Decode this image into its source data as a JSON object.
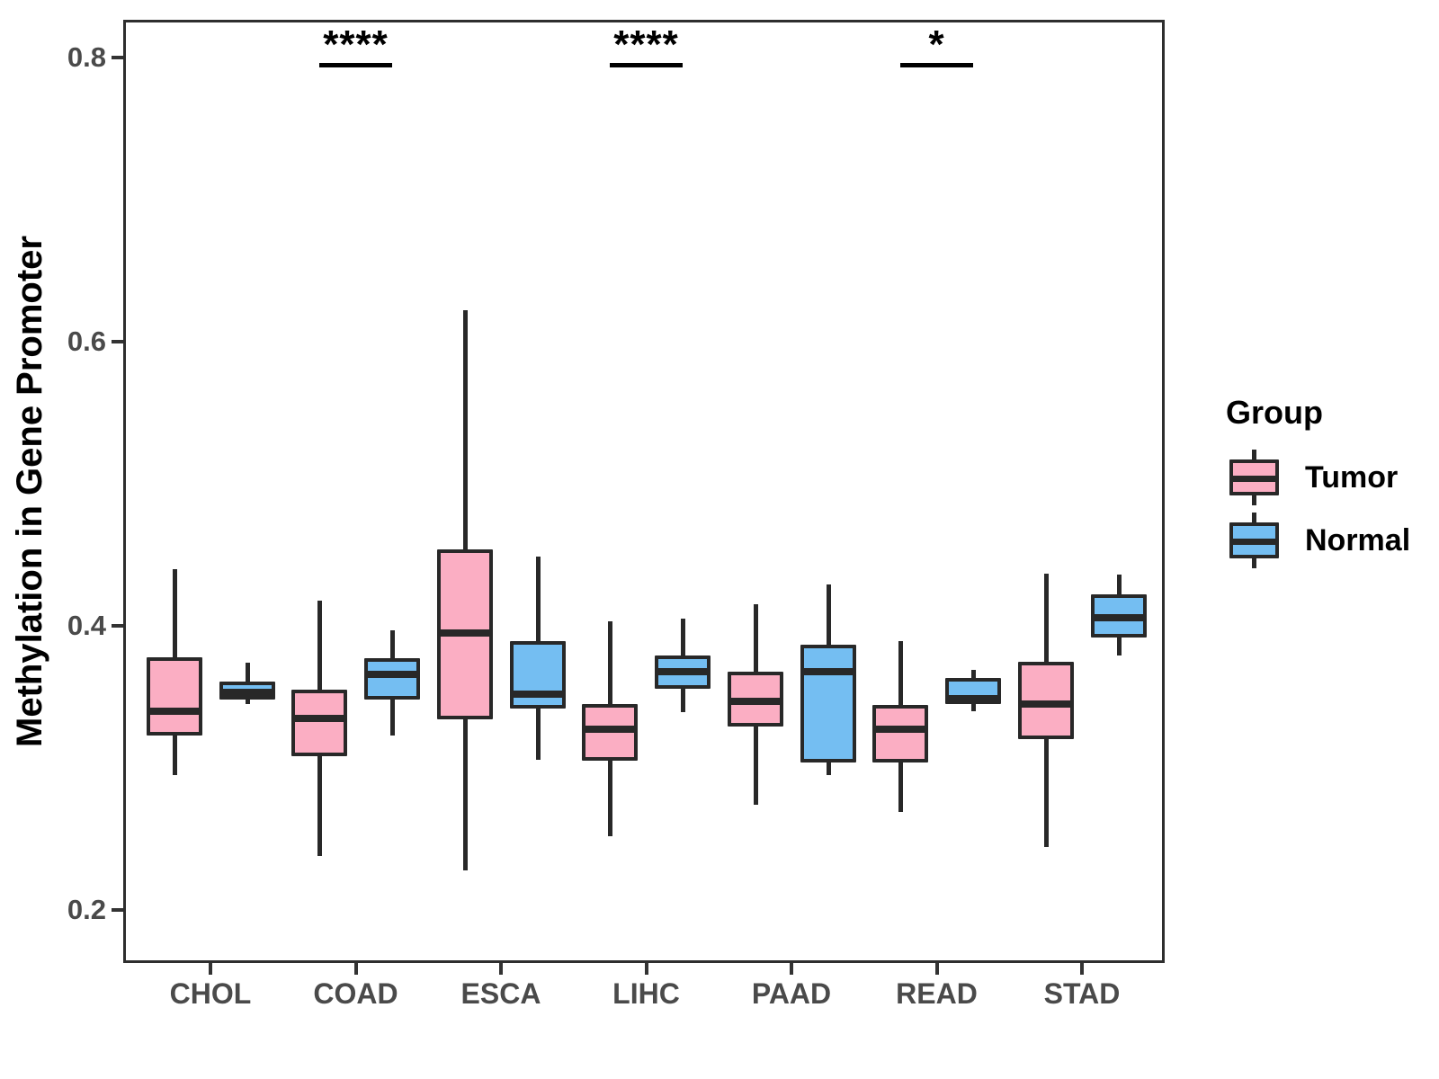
{
  "chart_data": {
    "type": "boxplot",
    "title": "",
    "xlabel": "",
    "ylabel": "Methylation in Gene Promoter",
    "categories": [
      "CHOL",
      "COAD",
      "ESCA",
      "LIHC",
      "PAAD",
      "READ",
      "STAD"
    ],
    "y_ticks": [
      {
        "value": 0.2,
        "label": "0.2"
      },
      {
        "value": 0.4,
        "label": "0.4"
      },
      {
        "value": 0.6,
        "label": "0.6"
      },
      {
        "value": 0.8,
        "label": "0.8"
      }
    ],
    "ylim": [
      0.163,
      0.827
    ],
    "grid": false,
    "legend_position": "right",
    "series": [
      {
        "name": "Tumor",
        "color": "#FBAEC3",
        "boxes": [
          {
            "category": "CHOL",
            "min": 0.295,
            "q1": 0.323,
            "med": 0.34,
            "q3": 0.378,
            "max": 0.44
          },
          {
            "category": "COAD",
            "min": 0.238,
            "q1": 0.308,
            "med": 0.335,
            "q3": 0.355,
            "max": 0.418
          },
          {
            "category": "ESCA",
            "min": 0.228,
            "q1": 0.334,
            "med": 0.395,
            "q3": 0.454,
            "max": 0.622
          },
          {
            "category": "LIHC",
            "min": 0.252,
            "q1": 0.305,
            "med": 0.327,
            "q3": 0.345,
            "max": 0.403
          },
          {
            "category": "PAAD",
            "min": 0.274,
            "q1": 0.329,
            "med": 0.347,
            "q3": 0.368,
            "max": 0.415
          },
          {
            "category": "READ",
            "min": 0.269,
            "q1": 0.304,
            "med": 0.327,
            "q3": 0.344,
            "max": 0.389
          },
          {
            "category": "STAD",
            "min": 0.244,
            "q1": 0.32,
            "med": 0.345,
            "q3": 0.375,
            "max": 0.437
          }
        ]
      },
      {
        "name": "Normal",
        "color": "#74BEF2",
        "boxes": [
          {
            "category": "CHOL",
            "min": 0.345,
            "q1": 0.348,
            "med": 0.353,
            "q3": 0.361,
            "max": 0.374
          },
          {
            "category": "COAD",
            "min": 0.323,
            "q1": 0.348,
            "med": 0.366,
            "q3": 0.377,
            "max": 0.397
          },
          {
            "category": "ESCA",
            "min": 0.306,
            "q1": 0.342,
            "med": 0.352,
            "q3": 0.389,
            "max": 0.449
          },
          {
            "category": "LIHC",
            "min": 0.339,
            "q1": 0.356,
            "med": 0.368,
            "q3": 0.379,
            "max": 0.405
          },
          {
            "category": "PAAD",
            "min": 0.295,
            "q1": 0.304,
            "med": 0.368,
            "q3": 0.387,
            "max": 0.429
          },
          {
            "category": "READ",
            "min": 0.34,
            "q1": 0.345,
            "med": 0.349,
            "q3": 0.363,
            "max": 0.369
          },
          {
            "category": "STAD",
            "min": 0.379,
            "q1": 0.392,
            "med": 0.406,
            "q3": 0.422,
            "max": 0.436
          }
        ]
      }
    ],
    "annotations": [
      {
        "category": "COAD",
        "label": "****"
      },
      {
        "category": "LIHC",
        "label": "****"
      },
      {
        "category": "READ",
        "label": "*"
      }
    ]
  },
  "legend": {
    "title": "Group",
    "items": [
      {
        "label": "Tumor",
        "color": "#FBAEC3"
      },
      {
        "label": "Normal",
        "color": "#74BEF2"
      }
    ]
  },
  "colors": {
    "box_stroke": "#282828",
    "panel_border": "#2e2e2e",
    "tick_text": "#4a4a4a",
    "annotation": "#000000"
  }
}
